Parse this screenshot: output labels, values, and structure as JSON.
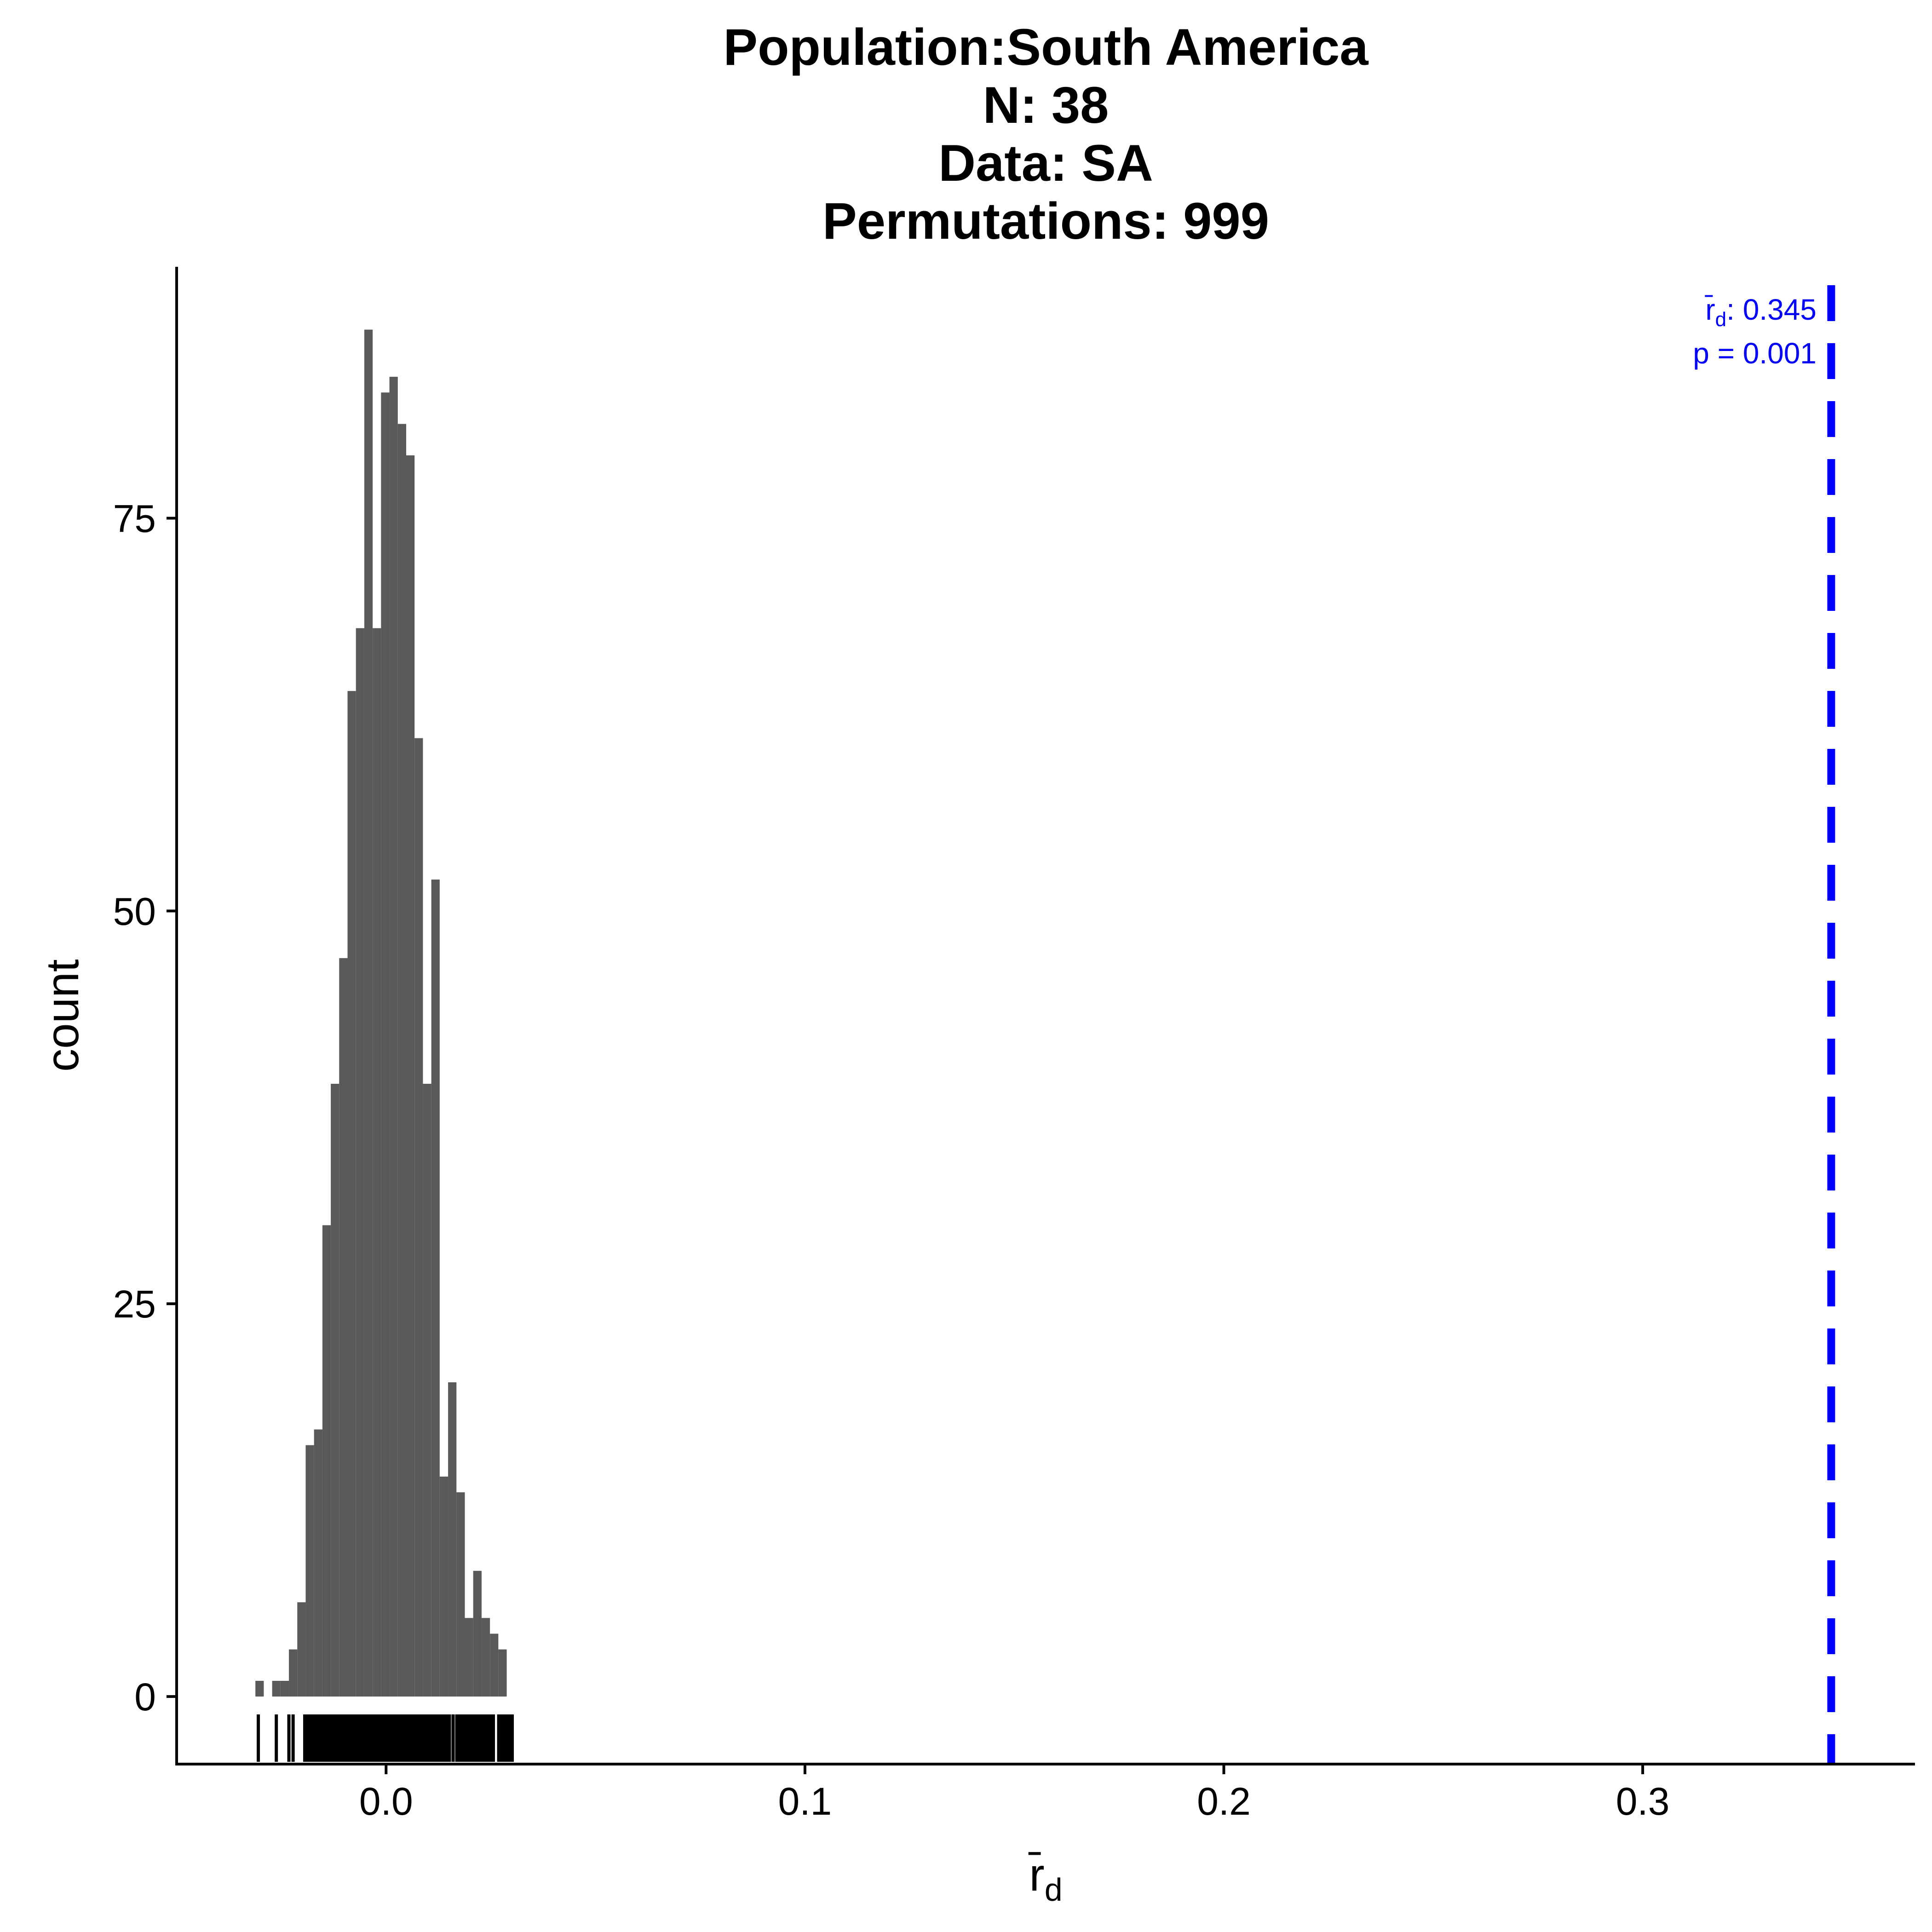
{
  "chart_data": {
    "type": "histogram",
    "title_lines": [
      "Population:South America",
      "N: 38",
      "Data: SA",
      "Permutations: 999"
    ],
    "xlabel": "r̄d",
    "ylabel": "count",
    "xlim": [
      -0.05,
      0.365
    ],
    "ylim": [
      -4.3,
      91
    ],
    "x_ticks": [
      0.0,
      0.1,
      0.2,
      0.3
    ],
    "x_tick_labels": [
      "0.0",
      "0.1",
      "0.2",
      "0.3"
    ],
    "y_ticks": [
      0,
      25,
      50,
      75
    ],
    "y_tick_labels": [
      "0",
      "25",
      "50",
      "75"
    ],
    "grid": false,
    "bin_width": 0.002,
    "bins": [
      {
        "x0": -0.0312,
        "count": 1
      },
      {
        "x0": -0.0292,
        "count": 0
      },
      {
        "x0": -0.0272,
        "count": 1
      },
      {
        "x0": -0.0252,
        "count": 1
      },
      {
        "x0": -0.0232,
        "count": 3
      },
      {
        "x0": -0.0212,
        "count": 6
      },
      {
        "x0": -0.0192,
        "count": 16
      },
      {
        "x0": -0.0172,
        "count": 17
      },
      {
        "x0": -0.0152,
        "count": 30
      },
      {
        "x0": -0.0132,
        "count": 39
      },
      {
        "x0": -0.0112,
        "count": 47
      },
      {
        "x0": -0.0092,
        "count": 64
      },
      {
        "x0": -0.0072,
        "count": 68
      },
      {
        "x0": -0.0052,
        "count": 87
      },
      {
        "x0": -0.0032,
        "count": 68
      },
      {
        "x0": -0.0012,
        "count": 83
      },
      {
        "x0": 0.0008,
        "count": 84
      },
      {
        "x0": 0.0028,
        "count": 81
      },
      {
        "x0": 0.0048,
        "count": 79
      },
      {
        "x0": 0.0068,
        "count": 61
      },
      {
        "x0": 0.0088,
        "count": 39
      },
      {
        "x0": 0.0108,
        "count": 52
      },
      {
        "x0": 0.0128,
        "count": 14
      },
      {
        "x0": 0.0148,
        "count": 20
      },
      {
        "x0": 0.0168,
        "count": 13
      },
      {
        "x0": 0.0188,
        "count": 5
      },
      {
        "x0": 0.0208,
        "count": 8
      },
      {
        "x0": 0.0228,
        "count": 5
      },
      {
        "x0": 0.0248,
        "count": 4
      },
      {
        "x0": 0.0268,
        "count": 3
      }
    ],
    "rug": {
      "dense_ranges": [
        [
          -0.0198,
          0.0155
        ],
        [
          0.0165,
          0.026
        ],
        [
          0.0265,
          0.0305
        ]
      ],
      "isolated_values": [
        -0.0305,
        -0.0262,
        -0.0232,
        -0.0222,
        0.016
      ]
    },
    "observed": {
      "value": 0.345,
      "label": "r̄d",
      "value_text": ": 0.345",
      "p_text": "p = 0.001",
      "color": "#0000ff",
      "linestyle": "dashed"
    },
    "bar_color": "#595959",
    "axis_color": "#000000"
  }
}
